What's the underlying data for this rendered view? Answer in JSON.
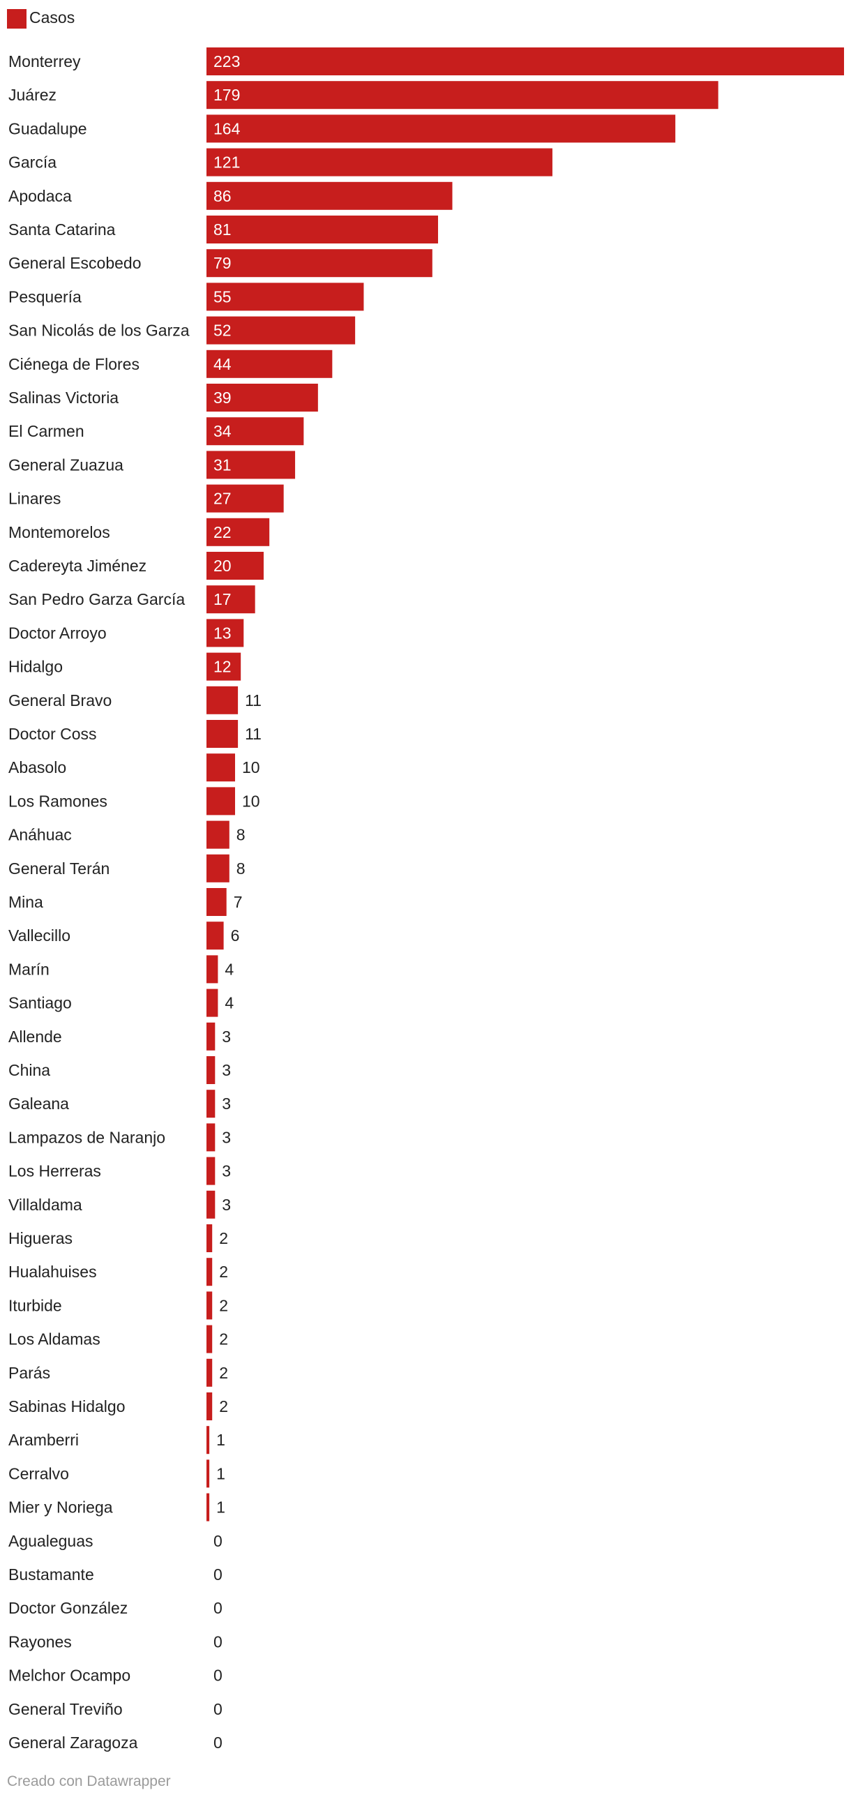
{
  "legend": {
    "label": "Casos",
    "color": "#c71e1d"
  },
  "footer": {
    "text": "Creado con Datawrapper"
  },
  "chart_data": {
    "type": "bar",
    "orientation": "horizontal",
    "series": [
      {
        "name": "Casos",
        "color": "#c71e1d",
        "values": [
          223,
          179,
          164,
          121,
          86,
          81,
          79,
          55,
          52,
          44,
          39,
          34,
          31,
          27,
          22,
          20,
          17,
          13,
          12,
          11,
          11,
          10,
          10,
          8,
          8,
          7,
          6,
          4,
          4,
          3,
          3,
          3,
          3,
          3,
          3,
          2,
          2,
          2,
          2,
          2,
          2,
          1,
          1,
          1,
          0,
          0,
          0,
          0,
          0,
          0,
          0
        ]
      }
    ],
    "categories": [
      "Monterrey",
      "Juárez",
      "Guadalupe",
      "García",
      "Apodaca",
      "Santa Catarina",
      "General Escobedo",
      "Pesquería",
      "San Nicolás de los Garza",
      "Ciénega de Flores",
      "Salinas Victoria",
      "El Carmen",
      "General Zuazua",
      "Linares",
      "Montemorelos",
      "Cadereyta Jiménez",
      "San Pedro Garza García",
      "Doctor Arroyo",
      "Hidalgo",
      "General Bravo",
      "Doctor Coss",
      "Abasolo",
      "Los Ramones",
      "Anáhuac",
      "General Terán",
      "Mina",
      "Vallecillo",
      "Marín",
      "Santiago",
      "Allende",
      "China",
      "Galeana",
      "Lampazos de Naranjo",
      "Los Herreras",
      "Villaldama",
      "Higueras",
      "Hualahuises",
      "Iturbide",
      "Los Aldamas",
      "Parás",
      "Sabinas Hidalgo",
      "Aramberri",
      "Cerralvo",
      "Mier y Noriega",
      "Agualeguas",
      "Bustamante",
      "Doctor González",
      "Rayones",
      "Melchor Ocampo",
      "General Treviño",
      "General Zaragoza"
    ],
    "title": "",
    "xlabel": "",
    "ylabel": "",
    "xlim": [
      0,
      223
    ],
    "grid": false,
    "legend_position": "top-left",
    "value_labels": true
  }
}
